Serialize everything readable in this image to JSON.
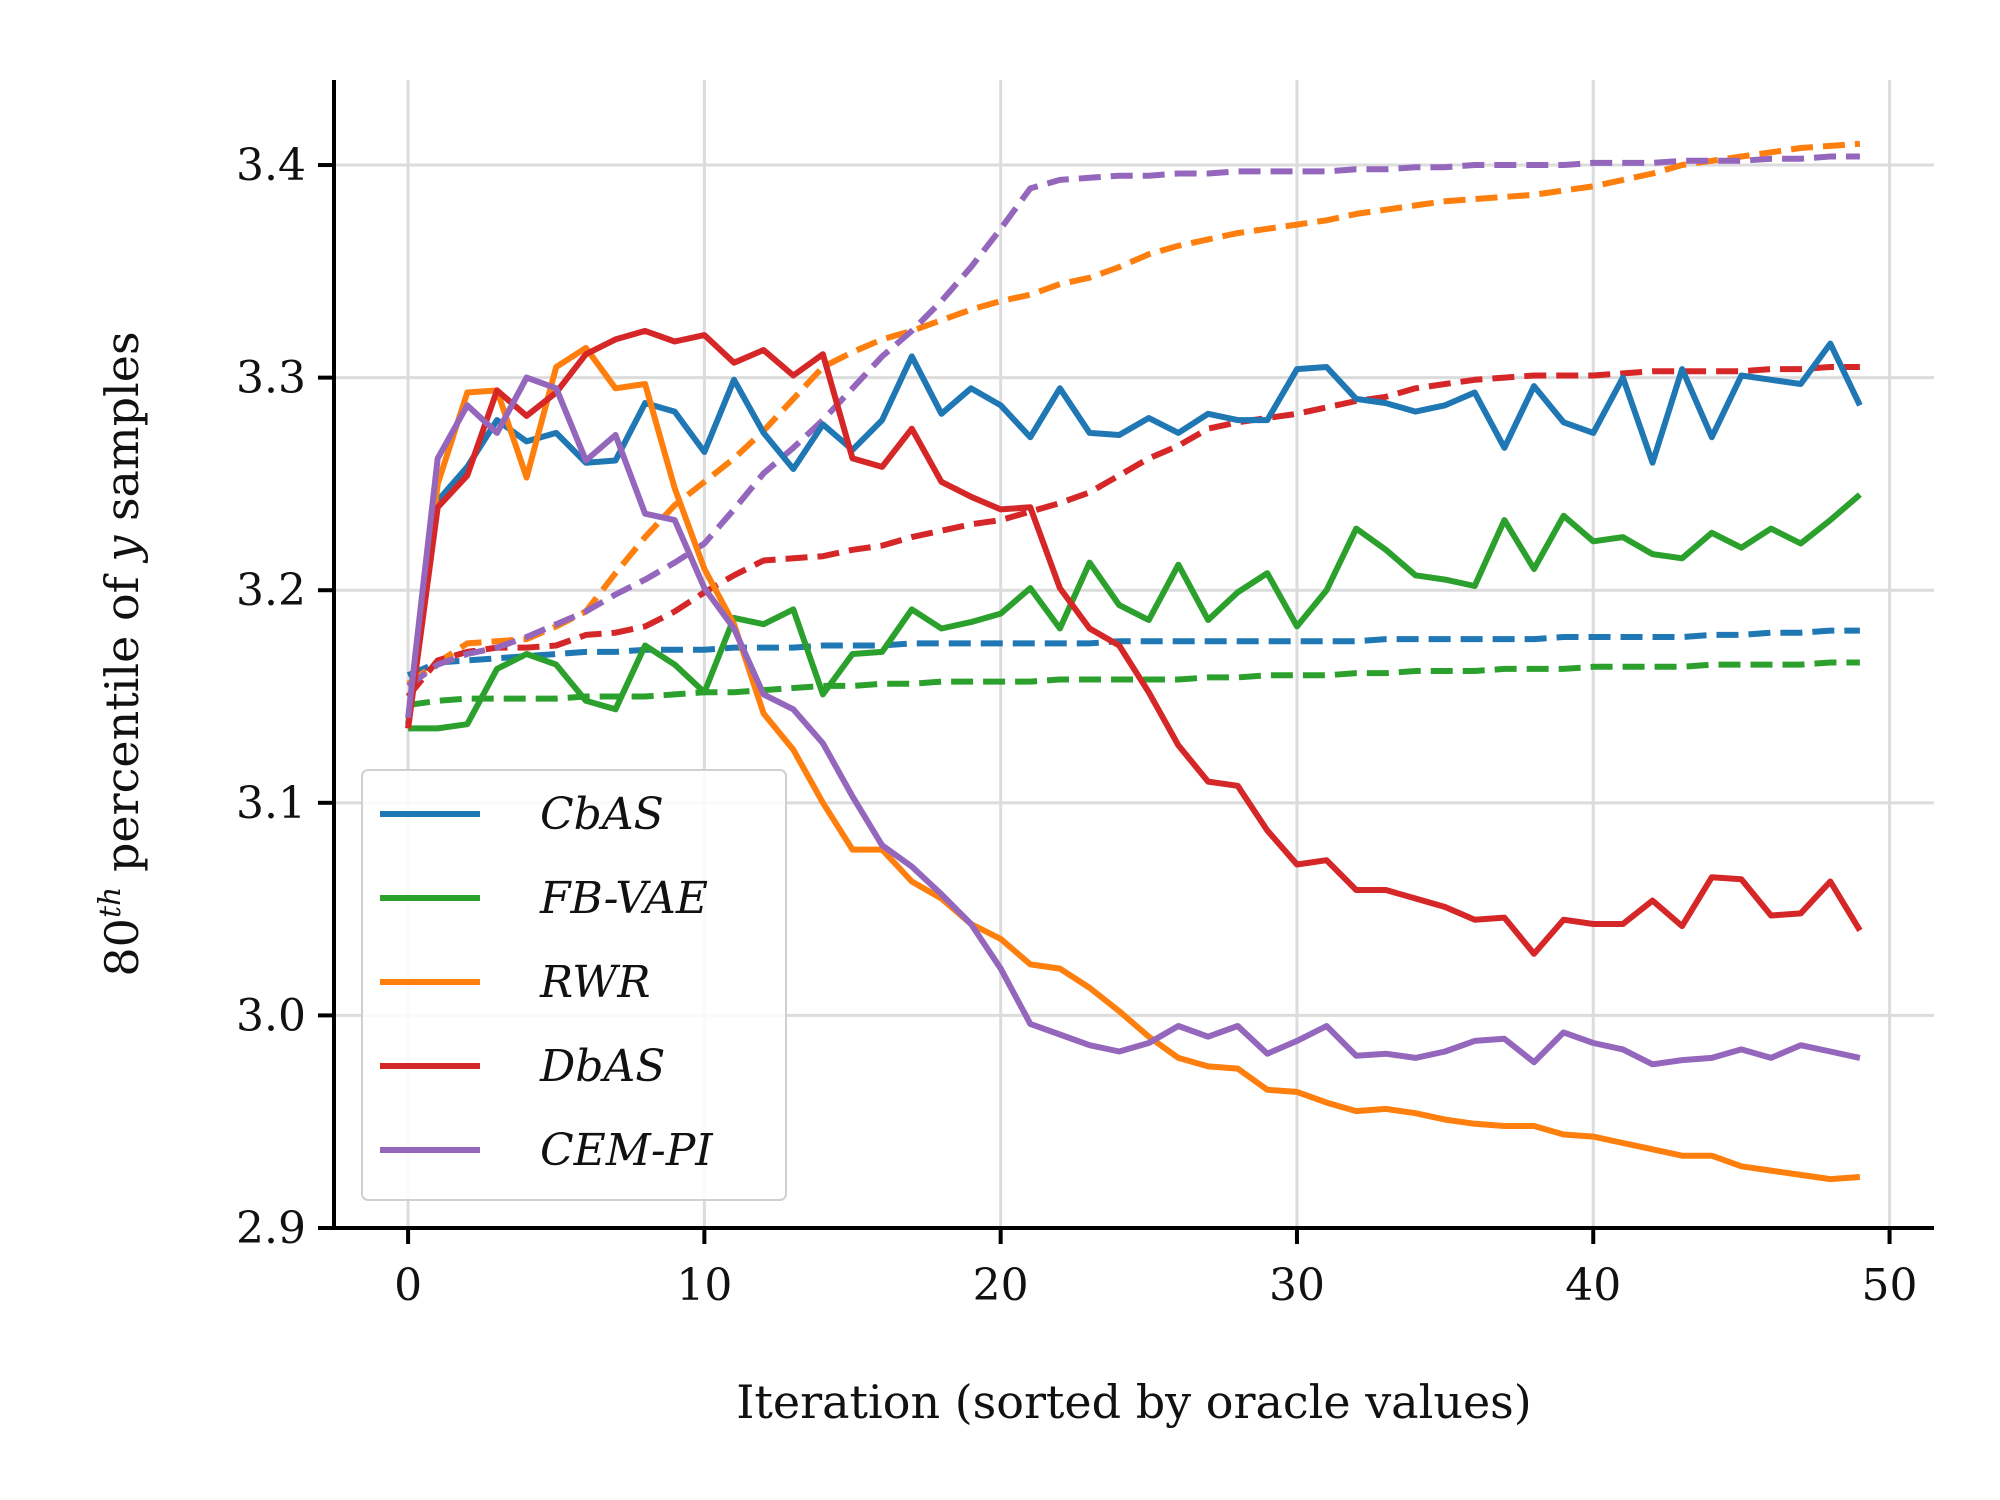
{
  "chart_data": {
    "type": "line",
    "xlabel": "Iteration (sorted by oracle values)",
    "ylabel_parts": {
      "base": "80",
      "sup": "th",
      "mid": " percentile of ",
      "var": "y",
      "end": " samples"
    },
    "xlim": [
      -2.5,
      51.5
    ],
    "ylim": [
      2.9,
      3.44
    ],
    "xticks": [
      0,
      10,
      20,
      30,
      40,
      50
    ],
    "yticks": [
      2.9,
      3.0,
      3.1,
      3.2,
      3.3,
      3.4
    ],
    "xtick_labels": [
      "0",
      "10",
      "20",
      "30",
      "40",
      "50"
    ],
    "ytick_labels": [
      "2.9",
      "3.0",
      "3.1",
      "3.2",
      "3.3",
      "3.4"
    ],
    "grid": true,
    "legend_position": "lower-left",
    "x": [
      0,
      1,
      2,
      3,
      4,
      5,
      6,
      7,
      8,
      9,
      10,
      11,
      12,
      13,
      14,
      15,
      16,
      17,
      18,
      19,
      20,
      21,
      22,
      23,
      24,
      25,
      26,
      27,
      28,
      29,
      30,
      31,
      32,
      33,
      34,
      35,
      36,
      37,
      38,
      39,
      40,
      41,
      42,
      43,
      44,
      45,
      46,
      47,
      48,
      49
    ],
    "series": [
      {
        "name": "CbAS",
        "color": "#1f77b4",
        "style": "solid",
        "in_legend": true,
        "values": [
          3.137,
          3.242,
          3.258,
          3.28,
          3.27,
          3.274,
          3.26,
          3.261,
          3.288,
          3.284,
          3.265,
          3.299,
          3.274,
          3.257,
          3.278,
          3.266,
          3.28,
          3.31,
          3.283,
          3.295,
          3.287,
          3.272,
          3.295,
          3.274,
          3.273,
          3.281,
          3.274,
          3.283,
          3.28,
          3.28,
          3.304,
          3.305,
          3.29,
          3.288,
          3.284,
          3.287,
          3.293,
          3.267,
          3.296,
          3.279,
          3.274,
          3.3,
          3.26,
          3.304,
          3.272,
          3.301,
          3.299,
          3.297,
          3.316,
          3.287
        ]
      },
      {
        "name": "CbAS (dashed)",
        "color": "#1f77b4",
        "style": "dashed",
        "in_legend": false,
        "values": [
          3.16,
          3.166,
          3.167,
          3.168,
          3.169,
          3.17,
          3.171,
          3.171,
          3.172,
          3.172,
          3.172,
          3.173,
          3.173,
          3.173,
          3.174,
          3.174,
          3.174,
          3.175,
          3.175,
          3.175,
          3.175,
          3.175,
          3.175,
          3.175,
          3.176,
          3.176,
          3.176,
          3.176,
          3.176,
          3.176,
          3.176,
          3.176,
          3.176,
          3.177,
          3.177,
          3.177,
          3.177,
          3.177,
          3.177,
          3.178,
          3.178,
          3.178,
          3.178,
          3.178,
          3.179,
          3.179,
          3.18,
          3.18,
          3.181,
          3.181
        ]
      },
      {
        "name": "FB-VAE",
        "color": "#2ca02c",
        "style": "solid",
        "in_legend": true,
        "values": [
          3.135,
          3.135,
          3.137,
          3.163,
          3.17,
          3.165,
          3.148,
          3.144,
          3.174,
          3.165,
          3.152,
          3.187,
          3.184,
          3.191,
          3.151,
          3.17,
          3.171,
          3.191,
          3.182,
          3.185,
          3.189,
          3.201,
          3.182,
          3.213,
          3.193,
          3.186,
          3.212,
          3.186,
          3.199,
          3.208,
          3.183,
          3.2,
          3.229,
          3.219,
          3.207,
          3.205,
          3.202,
          3.233,
          3.21,
          3.235,
          3.223,
          3.225,
          3.217,
          3.215,
          3.227,
          3.22,
          3.229,
          3.222,
          3.233,
          3.245
        ]
      },
      {
        "name": "FB-VAE (dashed)",
        "color": "#2ca02c",
        "style": "dashed",
        "in_legend": false,
        "values": [
          3.146,
          3.148,
          3.149,
          3.149,
          3.149,
          3.149,
          3.15,
          3.15,
          3.15,
          3.151,
          3.152,
          3.152,
          3.153,
          3.154,
          3.155,
          3.155,
          3.156,
          3.156,
          3.157,
          3.157,
          3.157,
          3.157,
          3.158,
          3.158,
          3.158,
          3.158,
          3.158,
          3.159,
          3.159,
          3.16,
          3.16,
          3.16,
          3.161,
          3.161,
          3.162,
          3.162,
          3.162,
          3.163,
          3.163,
          3.163,
          3.164,
          3.164,
          3.164,
          3.164,
          3.165,
          3.165,
          3.165,
          3.165,
          3.166,
          3.166
        ]
      },
      {
        "name": "RWR",
        "color": "#ff7f0e",
        "style": "solid",
        "in_legend": true,
        "values": [
          3.135,
          3.25,
          3.293,
          3.294,
          3.253,
          3.305,
          3.314,
          3.295,
          3.297,
          3.248,
          3.21,
          3.184,
          3.142,
          3.125,
          3.1,
          3.078,
          3.078,
          3.063,
          3.055,
          3.043,
          3.036,
          3.024,
          3.022,
          3.013,
          3.002,
          2.99,
          2.98,
          2.976,
          2.975,
          2.965,
          2.964,
          2.959,
          2.955,
          2.956,
          2.954,
          2.951,
          2.949,
          2.948,
          2.948,
          2.944,
          2.943,
          2.94,
          2.937,
          2.934,
          2.934,
          2.929,
          2.927,
          2.925,
          2.923,
          2.924
        ]
      },
      {
        "name": "RWR (dashed)",
        "color": "#ff7f0e",
        "style": "dashed",
        "in_legend": false,
        "values": [
          3.156,
          3.166,
          3.175,
          3.176,
          3.177,
          3.183,
          3.19,
          3.208,
          3.225,
          3.24,
          3.251,
          3.262,
          3.275,
          3.29,
          3.305,
          3.312,
          3.318,
          3.322,
          3.327,
          3.332,
          3.336,
          3.339,
          3.344,
          3.347,
          3.352,
          3.358,
          3.362,
          3.365,
          3.368,
          3.37,
          3.372,
          3.374,
          3.377,
          3.379,
          3.381,
          3.383,
          3.384,
          3.385,
          3.386,
          3.388,
          3.39,
          3.393,
          3.396,
          3.4,
          3.402,
          3.404,
          3.406,
          3.408,
          3.409,
          3.41
        ]
      },
      {
        "name": "DbAS",
        "color": "#d62728",
        "style": "solid",
        "in_legend": true,
        "values": [
          3.135,
          3.239,
          3.254,
          3.294,
          3.282,
          3.293,
          3.311,
          3.318,
          3.322,
          3.317,
          3.32,
          3.307,
          3.313,
          3.301,
          3.311,
          3.262,
          3.258,
          3.276,
          3.251,
          3.244,
          3.238,
          3.239,
          3.201,
          3.182,
          3.174,
          3.152,
          3.127,
          3.11,
          3.108,
          3.087,
          3.071,
          3.073,
          3.059,
          3.059,
          3.055,
          3.051,
          3.045,
          3.046,
          3.029,
          3.045,
          3.043,
          3.043,
          3.054,
          3.042,
          3.065,
          3.064,
          3.047,
          3.048,
          3.063,
          3.04
        ]
      },
      {
        "name": "DbAS (dashed)",
        "color": "#d62728",
        "style": "dashed",
        "in_legend": false,
        "values": [
          3.15,
          3.167,
          3.171,
          3.173,
          3.173,
          3.174,
          3.179,
          3.18,
          3.183,
          3.19,
          3.199,
          3.207,
          3.214,
          3.215,
          3.216,
          3.219,
          3.221,
          3.225,
          3.228,
          3.231,
          3.233,
          3.237,
          3.241,
          3.246,
          3.254,
          3.262,
          3.268,
          3.276,
          3.279,
          3.281,
          3.283,
          3.286,
          3.289,
          3.291,
          3.295,
          3.297,
          3.299,
          3.3,
          3.301,
          3.301,
          3.301,
          3.302,
          3.303,
          3.303,
          3.303,
          3.303,
          3.304,
          3.304,
          3.305,
          3.305
        ]
      },
      {
        "name": "CEM-PI",
        "color": "#9467bd",
        "style": "solid",
        "in_legend": true,
        "values": [
          3.14,
          3.262,
          3.287,
          3.274,
          3.3,
          3.295,
          3.261,
          3.273,
          3.236,
          3.233,
          3.201,
          3.182,
          3.151,
          3.144,
          3.128,
          3.103,
          3.08,
          3.07,
          3.057,
          3.043,
          3.022,
          2.996,
          2.991,
          2.986,
          2.983,
          2.987,
          2.995,
          2.99,
          2.995,
          2.982,
          2.988,
          2.995,
          2.981,
          2.982,
          2.98,
          2.983,
          2.988,
          2.989,
          2.978,
          2.992,
          2.987,
          2.984,
          2.977,
          2.979,
          2.98,
          2.984,
          2.98,
          2.986,
          2.983,
          2.98
        ]
      },
      {
        "name": "CEM-PI (dashed)",
        "color": "#9467bd",
        "style": "dashed",
        "in_legend": false,
        "values": [
          3.155,
          3.165,
          3.17,
          3.173,
          3.178,
          3.184,
          3.19,
          3.198,
          3.205,
          3.213,
          3.222,
          3.238,
          3.255,
          3.267,
          3.28,
          3.295,
          3.31,
          3.322,
          3.336,
          3.352,
          3.37,
          3.389,
          3.393,
          3.394,
          3.395,
          3.395,
          3.396,
          3.396,
          3.397,
          3.397,
          3.397,
          3.397,
          3.398,
          3.398,
          3.399,
          3.399,
          3.4,
          3.4,
          3.4,
          3.4,
          3.401,
          3.401,
          3.401,
          3.402,
          3.402,
          3.402,
          3.403,
          3.403,
          3.404,
          3.404
        ]
      }
    ],
    "legend": [
      {
        "label": "CbAS",
        "color": "#1f77b4"
      },
      {
        "label": "FB-VAE",
        "color": "#2ca02c"
      },
      {
        "label": "RWR",
        "color": "#ff7f0e"
      },
      {
        "label": "DbAS",
        "color": "#d62728"
      },
      {
        "label": "CEM-PI",
        "color": "#9467bd"
      }
    ]
  }
}
